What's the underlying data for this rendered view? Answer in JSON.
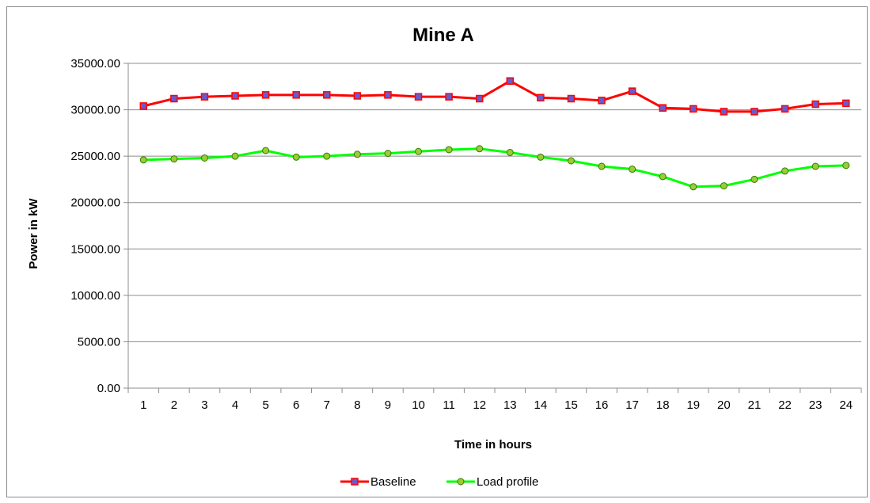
{
  "chart_data": {
    "type": "line",
    "title": "Mine A",
    "xlabel": "Time in hours",
    "ylabel": "Power in kW",
    "ylim": [
      0,
      35000
    ],
    "y_ticks": [
      "0.00",
      "5000.00",
      "10000.00",
      "15000.00",
      "20000.00",
      "25000.00",
      "30000.00",
      "35000.00"
    ],
    "categories": [
      "1",
      "2",
      "3",
      "4",
      "5",
      "6",
      "7",
      "8",
      "9",
      "10",
      "11",
      "12",
      "13",
      "14",
      "15",
      "16",
      "17",
      "18",
      "19",
      "20",
      "21",
      "22",
      "23",
      "24"
    ],
    "grid": "horizontal",
    "legend_position": "bottom",
    "series": [
      {
        "name": "Baseline",
        "color": "#ff0000",
        "marker": "square",
        "marker_color": "#6a5acd",
        "values": [
          30400,
          31200,
          31400,
          31500,
          31600,
          31600,
          31600,
          31500,
          31600,
          31400,
          31400,
          31200,
          33100,
          31300,
          31200,
          31000,
          32000,
          30200,
          30100,
          29800,
          29800,
          30100,
          30600,
          30700
        ]
      },
      {
        "name": "Load profile",
        "color": "#00ff00",
        "marker": "circle",
        "marker_color": "#9acd32",
        "values": [
          24600,
          24700,
          24800,
          25000,
          25600,
          24900,
          25000,
          25200,
          25300,
          25500,
          25700,
          25800,
          25400,
          24900,
          24500,
          23900,
          23600,
          22800,
          21700,
          21800,
          22500,
          23400,
          23900,
          24000
        ]
      }
    ]
  }
}
